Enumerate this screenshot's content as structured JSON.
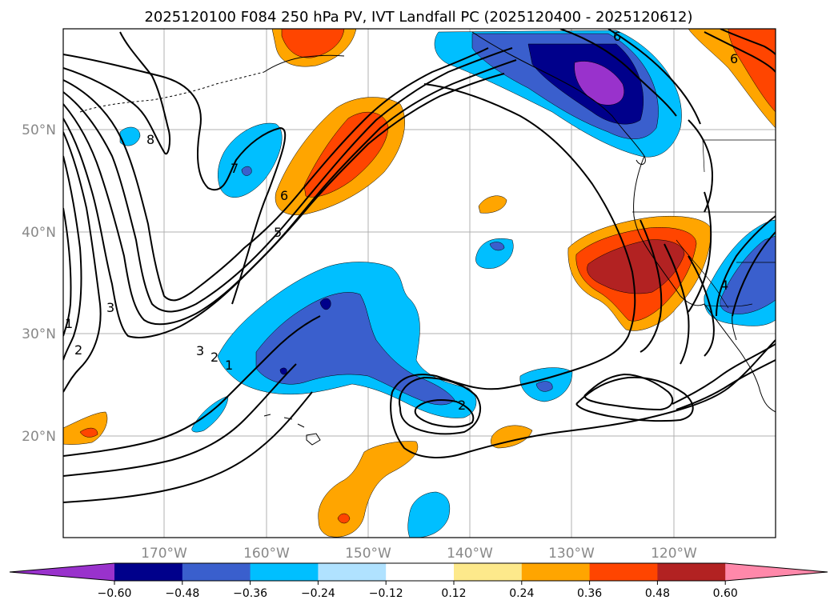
{
  "title": "2025120100 F084 250 hPa PV, IVT Landfall PC (2025120400 - 2025120612)",
  "axes": {
    "lat_labels": [
      "50°N",
      "40°N",
      "30°N",
      "20°N"
    ],
    "lon_labels": [
      "170°W",
      "160°W",
      "150°W",
      "140°W",
      "130°W",
      "120°W"
    ]
  },
  "colorbar": {
    "colors": [
      "#9932cc",
      "#00008b",
      "#3a5fcd",
      "#00bfff",
      "#b0e2ff",
      "#ffffff",
      "#fde98b",
      "#ffa500",
      "#ff4500",
      "#b22222",
      "#ff88aa"
    ],
    "ticks": [
      "−0.60",
      "−0.48",
      "−0.36",
      "−0.24",
      "−0.12",
      "0.12",
      "0.24",
      "0.36",
      "0.48",
      "0.60"
    ]
  },
  "contour_labels": [
    "6",
    "6",
    "8",
    "7",
    "6",
    "5",
    "3",
    "3",
    "2",
    "1",
    "1",
    "2",
    "2",
    "4"
  ]
}
